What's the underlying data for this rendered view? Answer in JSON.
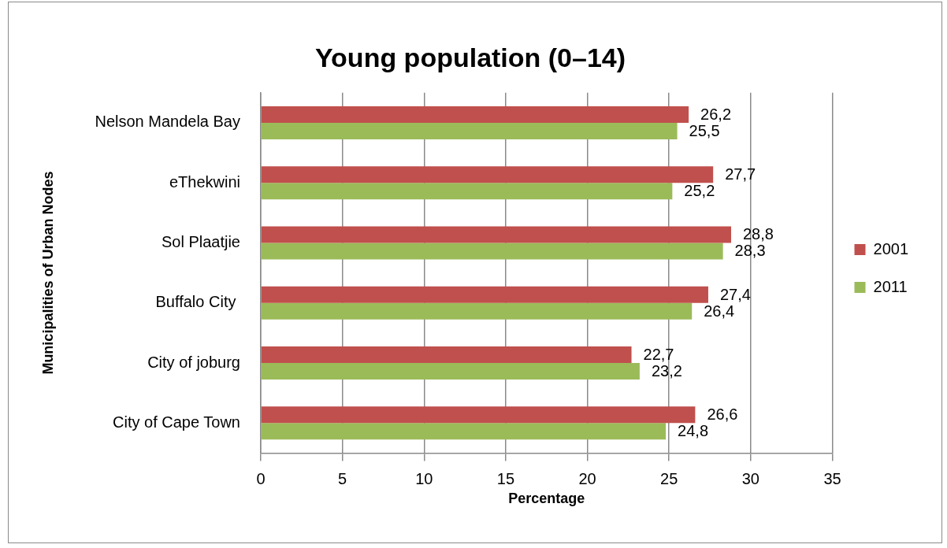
{
  "chart_data": {
    "type": "bar",
    "orientation": "horizontal",
    "title": "Young population (0–14)",
    "xlabel": "Percentage",
    "ylabel": "Municipalities of Urban Nodes",
    "categories": [
      "Nelson Mandela Bay",
      "eThekwini",
      "Sol Plaatjie",
      "Buffalo City ",
      "City of joburg",
      "City of Cape Town"
    ],
    "series": [
      {
        "name": "2001",
        "color": "#c0504d",
        "values": [
          26.2,
          27.7,
          28.8,
          27.4,
          22.7,
          26.6
        ],
        "value_labels": [
          "26,2",
          "27,7",
          "28,8",
          "27,4",
          "22,7",
          "26,6"
        ]
      },
      {
        "name": "2011",
        "color": "#9bbb59",
        "values": [
          25.5,
          25.2,
          28.3,
          26.4,
          23.2,
          24.8
        ],
        "value_labels": [
          "25,5",
          "25,2",
          "28,3",
          "26,4",
          "23,2",
          "24,8"
        ]
      }
    ],
    "xlim": [
      0,
      35
    ],
    "xticks": [
      0,
      5,
      10,
      15,
      20,
      25,
      30,
      35
    ],
    "grid": "x",
    "legend": "right"
  }
}
